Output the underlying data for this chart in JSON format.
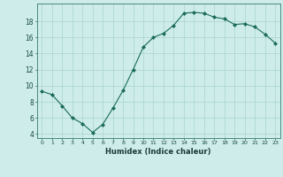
{
  "x": [
    0,
    1,
    2,
    3,
    4,
    5,
    6,
    7,
    8,
    9,
    10,
    11,
    12,
    13,
    14,
    15,
    16,
    17,
    18,
    19,
    20,
    21,
    22,
    23
  ],
  "y": [
    9.3,
    8.9,
    7.5,
    6.0,
    5.3,
    4.2,
    5.2,
    7.2,
    9.4,
    12.0,
    14.8,
    16.0,
    16.5,
    17.5,
    19.0,
    19.1,
    19.0,
    18.5,
    18.3,
    17.6,
    17.7,
    17.3,
    16.4,
    15.3
  ],
  "line_color": "#1a6b5a",
  "marker": "D",
  "marker_size": 2.0,
  "bg_color": "#cdecea",
  "grid_color": "#aad4d0",
  "xlabel": "Humidex (Indice chaleur)",
  "xlim": [
    -0.5,
    23.5
  ],
  "ylim": [
    3.5,
    20.2
  ],
  "yticks": [
    4,
    6,
    8,
    10,
    12,
    14,
    16,
    18
  ],
  "xticks": [
    0,
    1,
    2,
    3,
    4,
    5,
    6,
    7,
    8,
    9,
    10,
    11,
    12,
    13,
    14,
    15,
    16,
    17,
    18,
    19,
    20,
    21,
    22,
    23
  ]
}
